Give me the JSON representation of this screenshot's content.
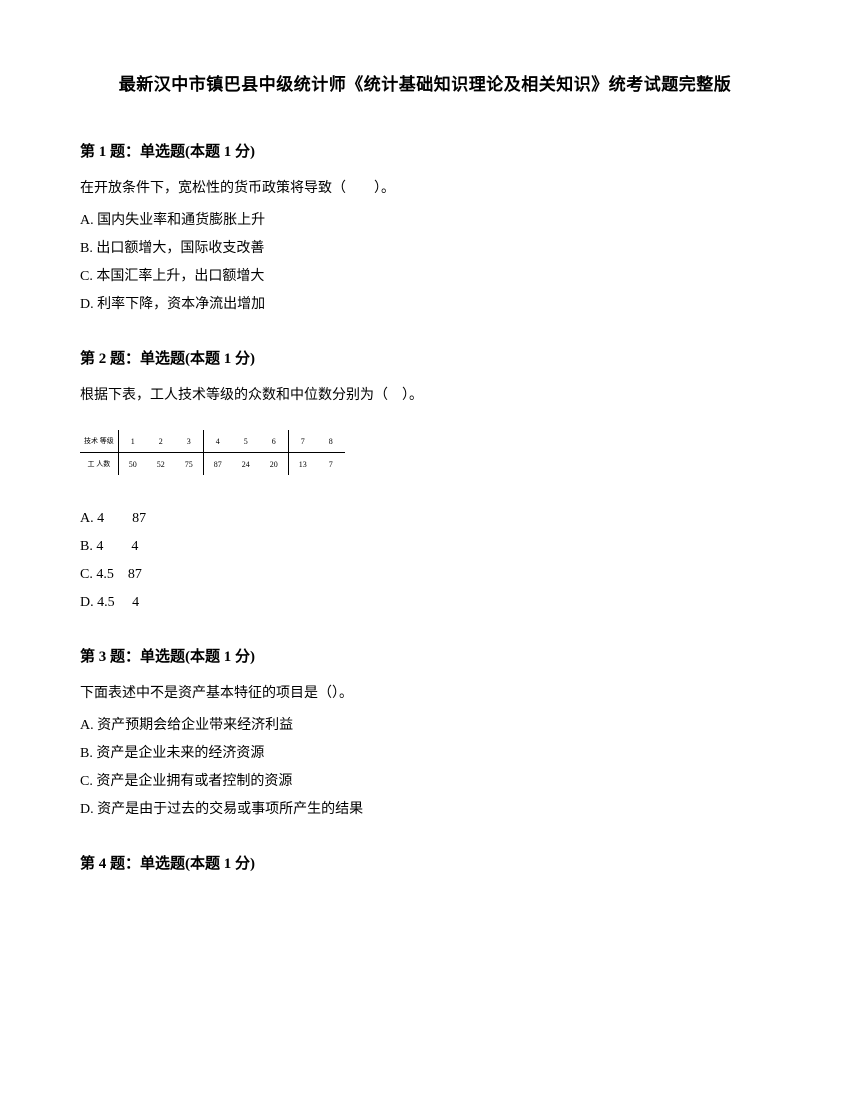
{
  "title": "最新汉中市镇巴县中级统计师《统计基础知识理论及相关知识》统考试题完整版",
  "q1": {
    "header": "第 1 题：单选题(本题 1 分)",
    "text": "在开放条件下，宽松性的货币政策将导致（　　）。",
    "options": {
      "a": "A. 国内失业率和通货膨胀上升",
      "b": "B. 出口额增大，国际收支改善",
      "c": "C. 本国汇率上升，出口额增大",
      "d": "D. 利率下降，资本净流出增加"
    }
  },
  "q2": {
    "header": "第 2 题：单选题(本题 1 分)",
    "text": "根据下表，工人技术等级的众数和中位数分别为（　）。",
    "table": {
      "row1_label": "技术\n等级",
      "row2_label": "工\n人数",
      "headers": [
        "1",
        "2",
        "3",
        "4",
        "5",
        "6",
        "7",
        "8"
      ],
      "values": [
        "50",
        "52",
        "75",
        "87",
        "24",
        "20",
        "13",
        "7"
      ]
    },
    "options": {
      "a": "A. 4　　87",
      "b": "B. 4　　4",
      "c": "C. 4.5　87",
      "d": "D. 4.5　 4"
    }
  },
  "q3": {
    "header": "第 3 题：单选题(本题 1 分)",
    "text": "下面表述中不是资产基本特征的项目是（）。",
    "options": {
      "a": "A. 资产预期会给企业带来经济利益",
      "b": "B. 资产是企业未来的经济资源",
      "c": "C. 资产是企业拥有或者控制的资源",
      "d": "D. 资产是由于过去的交易或事项所产生的结果"
    }
  },
  "q4": {
    "header": "第 4 题：单选题(本题 1 分)"
  }
}
